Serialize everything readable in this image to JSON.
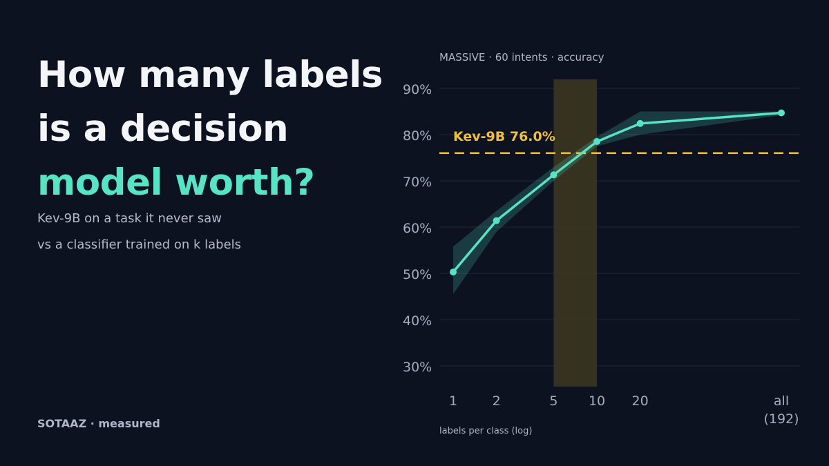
{
  "headline": {
    "line1": "How many labels",
    "line2": "is a decision",
    "line3": "model worth?"
  },
  "subtitle": {
    "line1": "Kev-9B on a task it never saw",
    "line2": "vs a classifier trained on k labels"
  },
  "brand": "SOTAAZ · measured",
  "colors": {
    "background": "#0c1220",
    "accent": "#57e3c6",
    "baseline": "#f2bf3a",
    "highlight_band": "#3a3620"
  },
  "chart_data": {
    "type": "line",
    "title": "MASSIVE · 60 intents · accuracy",
    "xlabel": "labels per class (log)",
    "ylabel": "",
    "x_scale": "log",
    "x": [
      1,
      2,
      5,
      10,
      20,
      192
    ],
    "x_ticks": [
      {
        "value": 1,
        "label": "1"
      },
      {
        "value": 2,
        "label": "2"
      },
      {
        "value": 5,
        "label": "5"
      },
      {
        "value": 10,
        "label": "10"
      },
      {
        "value": 20,
        "label": "20"
      },
      {
        "value": 192,
        "label": "all",
        "label2": "(192)"
      }
    ],
    "ylim": [
      25,
      92
    ],
    "y_ticks": [
      30,
      40,
      50,
      60,
      70,
      80,
      90
    ],
    "y_tick_labels": [
      "30%",
      "40%",
      "50%",
      "60%",
      "70%",
      "80%",
      "90%"
    ],
    "grid": true,
    "series": [
      {
        "values": [
          50.3,
          61.4,
          71.3,
          78.5,
          82.4,
          84.7
        ],
        "lower": [
          45.5,
          59.0,
          70.0,
          77.5,
          80.0,
          84.2
        ],
        "upper": [
          55.8,
          63.5,
          73.0,
          79.5,
          85.0,
          85.0
        ]
      }
    ],
    "reference_line": {
      "value": 76.0,
      "label": "Kev-9B 76.0%"
    },
    "highlight_range": [
      5,
      10
    ]
  }
}
